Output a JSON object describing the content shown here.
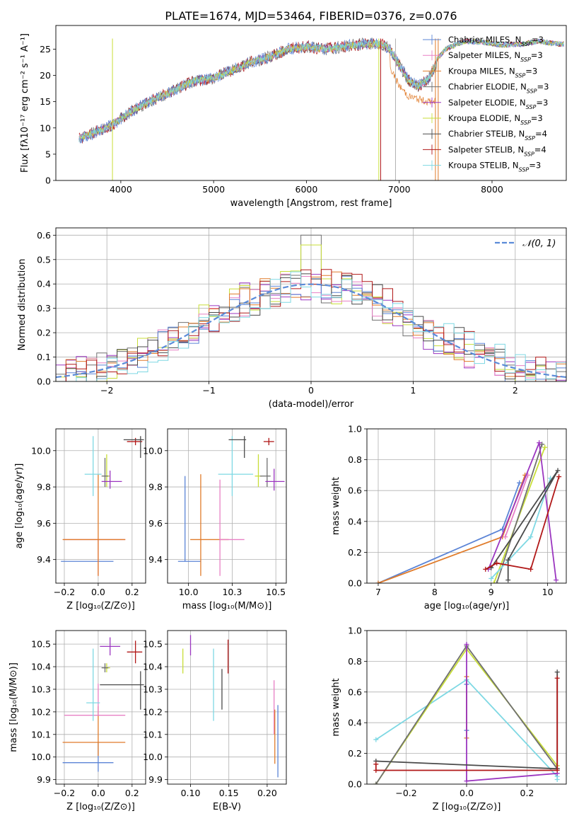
{
  "title": "PLATE=1674, MJD=53464, FIBERID=0376, z=0.076",
  "models": [
    {
      "key": "chab_miles",
      "label": "Chabrier MILES, N",
      "sub": "SSP",
      "suffix": "=3",
      "color": "#5b84d6"
    },
    {
      "key": "salp_miles",
      "label": "Salpeter MILES, N",
      "sub": "SSP",
      "suffix": "=3",
      "color": "#e880c5"
    },
    {
      "key": "krou_miles",
      "label": "Kroupa MILES, N",
      "sub": "SSP",
      "suffix": "=3",
      "color": "#e07b2a"
    },
    {
      "key": "chab_elodie",
      "label": "Chabrier ELODIE, N",
      "sub": "SSP",
      "suffix": "=3",
      "color": "#707070"
    },
    {
      "key": "salp_elodie",
      "label": "Salpeter ELODIE, N",
      "sub": "SSP",
      "suffix": "=3",
      "color": "#9b36c0"
    },
    {
      "key": "krou_elodie",
      "label": "Kroupa ELODIE, N",
      "sub": "SSP",
      "suffix": "=3",
      "color": "#c8de38"
    },
    {
      "key": "chab_stelib",
      "label": "Chabrier STELIB, N",
      "sub": "SSP",
      "suffix": "=4",
      "color": "#4a4a4a"
    },
    {
      "key": "salp_stelib",
      "label": "Salpeter STELIB, N",
      "sub": "SSP",
      "suffix": "=4",
      "color": "#b11818"
    },
    {
      "key": "krou_stelib",
      "label": "Kroupa STELIB, N",
      "sub": "SSP",
      "suffix": "=3",
      "color": "#7ed8e3"
    }
  ],
  "chart_data": [
    {
      "id": "spectrum",
      "type": "line",
      "xlabel": "wavelength [Angstrom, rest frame]",
      "ylabel": "Flux [fλ10⁻¹⁷ erg cm⁻² s⁻¹ A⁻¹]",
      "xlim": [
        3300,
        8800
      ],
      "ylim": [
        0,
        29.5
      ],
      "xticks": [
        4000,
        5000,
        6000,
        7000,
        8000
      ],
      "yticks": [
        0,
        5,
        10,
        15,
        20,
        25
      ],
      "continuum": {
        "x": [
          3550,
          3700,
          3900,
          4100,
          4300,
          4500,
          4800,
          5000,
          5200,
          5400,
          5600,
          5800,
          6000,
          6200,
          6400,
          6600,
          6800,
          6900,
          7000,
          7100,
          7200,
          7300,
          7400
        ],
        "y": [
          8,
          9,
          10.5,
          13,
          15,
          16.5,
          19,
          19.5,
          21,
          22.5,
          23.5,
          25,
          25.5,
          25,
          25.5,
          26,
          26,
          25,
          22,
          19,
          18,
          19,
          22
        ]
      },
      "series_high": {
        "x": [
          7100,
          7300,
          7500,
          7700,
          7900,
          8100,
          8300,
          8500,
          8700
        ],
        "y": [
          20,
          21,
          25,
          26.5,
          26.3,
          25.8,
          25.9,
          26.5,
          26
        ]
      },
      "series_low": {
        "name": "Kroupa MILES",
        "x": [
          6900,
          7000,
          7100,
          7200,
          7300,
          7400
        ],
        "y": [
          21.5,
          18,
          16,
          15.5,
          15,
          15
        ]
      }
    },
    {
      "id": "residuals",
      "type": "histogram",
      "xlabel": "(data-model)/error",
      "ylabel": "Normed distribution",
      "xlim": [
        -2.5,
        2.5
      ],
      "ylim": [
        0,
        0.63
      ],
      "xticks": [
        -2,
        -1,
        0,
        1,
        2
      ],
      "yticks": [
        0.0,
        0.1,
        0.2,
        0.3,
        0.4,
        0.5,
        0.6
      ],
      "legend": "𝒩(0, 1)",
      "legend_color": "#5b8bd8",
      "bin_width": 0.1,
      "bin_start": -2.5,
      "peak": {
        "x": 0.0,
        "y": 0.6
      }
    },
    {
      "id": "age_vs_Z",
      "type": "errorbar",
      "xlabel": "Z [log₁₀(Z/Z⊙)]",
      "ylabel": "age  [log₁₀(age/yr)]",
      "xlim": [
        -0.25,
        0.28
      ],
      "ylim": [
        9.27,
        10.12
      ],
      "xticks": [
        -0.2,
        0.0,
        0.2
      ],
      "yticks": [
        9.4,
        9.6,
        9.8,
        10.0
      ],
      "points": [
        {
          "model": "chab_miles",
          "x": 0.0,
          "y": 9.39,
          "xerr": [
            0.22,
            0.09
          ],
          "yerr": [
            0,
            0
          ]
        },
        {
          "model": "salp_miles",
          "x": 0.0,
          "y": 9.51,
          "xerr": [
            0.2,
            0.16
          ],
          "yerr": [
            0.2,
            0
          ]
        },
        {
          "model": "krou_miles",
          "x": 0.0,
          "y": 9.51,
          "xerr": [
            0.21,
            0.16
          ],
          "yerr": [
            0.2,
            0.36
          ]
        },
        {
          "model": "krou_stelib",
          "x": -0.03,
          "y": 9.87,
          "xerr": [
            0.05,
            0.05
          ],
          "yerr": [
            0.12,
            0.21
          ]
        },
        {
          "model": "krou_elodie",
          "x": 0.05,
          "y": 9.86,
          "xerr": [
            0.02,
            0.02
          ],
          "yerr": [
            0.06,
            0.12
          ]
        },
        {
          "model": "chab_elodie",
          "x": 0.04,
          "y": 9.86,
          "xerr": [
            0.02,
            0.02
          ],
          "yerr": [
            0.06,
            0.1
          ]
        },
        {
          "model": "salp_elodie",
          "x": 0.07,
          "y": 9.83,
          "xerr": [
            0.05,
            0.07
          ],
          "yerr": [
            0.04,
            0.06
          ]
        },
        {
          "model": "salp_stelib",
          "x": 0.22,
          "y": 10.05,
          "xerr": [
            0.05,
            0.04
          ],
          "yerr": [
            0.02,
            0.02
          ]
        },
        {
          "model": "chab_stelib",
          "x": 0.25,
          "y": 10.06,
          "xerr": [
            0.1,
            0.02
          ],
          "yerr": [
            0.1,
            0.02
          ]
        }
      ]
    },
    {
      "id": "age_vs_mass",
      "type": "errorbar",
      "xlabel": "mass [log₁₀(M/M⊙)]",
      "ylabel": "",
      "xlim": [
        9.88,
        10.56
      ],
      "ylim": [
        9.27,
        10.12
      ],
      "xticks": [
        10.0,
        10.25,
        10.5
      ],
      "yticks": [
        9.4,
        9.6,
        9.8,
        10.0
      ],
      "points": [
        {
          "model": "chab_miles",
          "x": 9.98,
          "y": 9.39,
          "xerr": [
            0.04,
            0.09
          ],
          "yerr": [
            0,
            0.47
          ]
        },
        {
          "model": "krou_miles",
          "x": 10.07,
          "y": 9.51,
          "xerr": [
            0.06,
            0.16
          ],
          "yerr": [
            0.2,
            0.36
          ]
        },
        {
          "model": "salp_miles",
          "x": 10.18,
          "y": 9.51,
          "xerr": [
            0,
            0.14
          ],
          "yerr": [
            0.2,
            0.33
          ]
        },
        {
          "model": "krou_stelib",
          "x": 10.25,
          "y": 9.87,
          "xerr": [
            0.08,
            0.12
          ],
          "yerr": [
            0.12,
            0.21
          ]
        },
        {
          "model": "chab_stelib",
          "x": 10.32,
          "y": 10.06,
          "xerr": [
            0.09,
            0.01
          ],
          "yerr": [
            0.1,
            0.02
          ]
        },
        {
          "model": "krou_elodie",
          "x": 10.4,
          "y": 9.86,
          "xerr": [
            0.02,
            0.02
          ],
          "yerr": [
            0.06,
            0.12
          ]
        },
        {
          "model": "salp_stelib",
          "x": 10.46,
          "y": 10.05,
          "xerr": [
            0.03,
            0.03
          ],
          "yerr": [
            0.02,
            0.02
          ]
        },
        {
          "model": "chab_elodie",
          "x": 10.45,
          "y": 9.86,
          "xerr": [
            0.04,
            0.02
          ],
          "yerr": [
            0.06,
            0.1
          ]
        },
        {
          "model": "salp_elodie",
          "x": 10.49,
          "y": 9.83,
          "xerr": [
            0.05,
            0.06
          ],
          "yerr": [
            0.05,
            0.07
          ]
        }
      ]
    },
    {
      "id": "weight_vs_age",
      "type": "line",
      "xlabel": "age  [log₁₀(age/yr)]",
      "ylabel": "mass weight",
      "xlim": [
        6.8,
        10.33
      ],
      "ylim": [
        0,
        1
      ],
      "xticks": [
        7,
        8,
        9,
        10
      ],
      "yticks": [
        0.0,
        0.2,
        0.4,
        0.6,
        0.8,
        1.0
      ],
      "series": [
        {
          "model": "chab_miles",
          "x": [
            7.0,
            9.2,
            9.5
          ],
          "y": [
            0.0,
            0.35,
            0.65
          ]
        },
        {
          "model": "krou_miles",
          "x": [
            7.0,
            9.2,
            9.6
          ],
          "y": [
            0.0,
            0.3,
            0.7
          ]
        },
        {
          "model": "salp_miles",
          "x": [
            9.25,
            9.65
          ],
          "y": [
            0.3,
            0.7
          ]
        },
        {
          "model": "krou_elodie",
          "x": [
            9.05,
            9.95,
            9.95
          ],
          "y": [
            0.0,
            0.88,
            0.88
          ]
        },
        {
          "model": "chab_elodie",
          "x": [
            9.1,
            9.9
          ],
          "y": [
            0.0,
            0.9
          ]
        },
        {
          "model": "salp_elodie",
          "x": [
            8.95,
            9.85,
            10.15
          ],
          "y": [
            0.09,
            0.91,
            0.02
          ]
        },
        {
          "model": "krou_stelib",
          "x": [
            9.0,
            9.7,
            10.05
          ],
          "y": [
            0.03,
            0.3,
            0.68
          ]
        },
        {
          "model": "chab_stelib",
          "x": [
            9.3,
            9.3,
            10.18,
            9.0
          ],
          "y": [
            0.02,
            0.15,
            0.73,
            0.1
          ]
        },
        {
          "model": "salp_stelib",
          "x": [
            8.9,
            9.1,
            9.7,
            10.2
          ],
          "y": [
            0.09,
            0.13,
            0.09,
            0.69
          ]
        }
      ]
    },
    {
      "id": "mass_vs_Z",
      "type": "errorbar",
      "xlabel": "Z [log₁₀(Z/Z⊙)]",
      "ylabel": "mass [log₁₀(M/M⊙)]",
      "xlim": [
        -0.25,
        0.28
      ],
      "ylim": [
        9.88,
        10.56
      ],
      "xticks": [
        -0.2,
        0.0,
        0.2
      ],
      "yticks": [
        9.9,
        10.0,
        10.1,
        10.2,
        10.3,
        10.4,
        10.5
      ],
      "points": [
        {
          "model": "chab_miles",
          "x": 0.0,
          "y": 9.975,
          "xerr": [
            0.21,
            0.09
          ],
          "yerr": [
            0.04,
            0.09
          ]
        },
        {
          "model": "krou_miles",
          "x": 0.0,
          "y": 10.065,
          "xerr": [
            0.21,
            0.16
          ],
          "yerr": [
            0.06,
            0.16
          ]
        },
        {
          "model": "salp_miles",
          "x": 0.0,
          "y": 10.185,
          "xerr": [
            0.2,
            0.16
          ],
          "yerr": [
            0,
            0.14
          ]
        },
        {
          "model": "krou_stelib",
          "x": -0.03,
          "y": 10.24,
          "xerr": [
            0.04,
            0.04
          ],
          "yerr": [
            0.08,
            0.24
          ]
        },
        {
          "model": "chab_stelib",
          "x": 0.25,
          "y": 10.32,
          "xerr": [
            0.24,
            0.02
          ],
          "yerr": [
            0.11,
            0.06
          ]
        },
        {
          "model": "krou_elodie",
          "x": 0.05,
          "y": 10.395,
          "xerr": [
            0.02,
            0.02
          ],
          "yerr": [
            0.02,
            0.02
          ]
        },
        {
          "model": "chab_elodie",
          "x": 0.04,
          "y": 10.395,
          "xerr": [
            0.02,
            0.02
          ],
          "yerr": [
            0.02,
            0.02
          ]
        },
        {
          "model": "salp_stelib",
          "x": 0.22,
          "y": 10.465,
          "xerr": [
            0.05,
            0.04
          ],
          "yerr": [
            0.05,
            0.05
          ]
        },
        {
          "model": "salp_elodie",
          "x": 0.07,
          "y": 10.49,
          "xerr": [
            0.06,
            0.06
          ],
          "yerr": [
            0.04,
            0.04
          ]
        }
      ]
    },
    {
      "id": "mass_vs_ebv",
      "type": "errorbar",
      "xlabel": "E(B-V)",
      "ylabel": "",
      "xlim": [
        0.07,
        0.225
      ],
      "ylim": [
        9.88,
        10.56
      ],
      "xticks": [
        0.1,
        0.15,
        0.2
      ],
      "yticks": [
        9.9,
        10.0,
        10.1,
        10.2,
        10.3,
        10.4,
        10.5
      ],
      "points": [
        {
          "model": "krou_elodie",
          "x": 0.09,
          "y": 10.42,
          "xerr": [
            0,
            0
          ],
          "yerr": [
            0.05,
            0.06
          ]
        },
        {
          "model": "salp_elodie",
          "x": 0.1,
          "y": 10.49,
          "xerr": [
            0,
            0
          ],
          "yerr": [
            0.04,
            0.05
          ]
        },
        {
          "model": "krou_stelib",
          "x": 0.13,
          "y": 10.32,
          "xerr": [
            0,
            0
          ],
          "yerr": [
            0.16,
            0.16
          ]
        },
        {
          "model": "chab_stelib",
          "x": 0.141,
          "y": 10.3,
          "xerr": [
            0,
            0
          ],
          "yerr": [
            0.09,
            0.09
          ]
        },
        {
          "model": "salp_stelib",
          "x": 0.149,
          "y": 10.44,
          "xerr": [
            0,
            0
          ],
          "yerr": [
            0.07,
            0.08
          ]
        },
        {
          "model": "salp_miles",
          "x": 0.209,
          "y": 10.2,
          "xerr": [
            0,
            0
          ],
          "yerr": [
            0.1,
            0.14
          ]
        },
        {
          "model": "krou_miles",
          "x": 0.21,
          "y": 10.09,
          "xerr": [
            0,
            0
          ],
          "yerr": [
            0.12,
            0.12
          ]
        },
        {
          "model": "chab_miles",
          "x": 0.214,
          "y": 10.07,
          "xerr": [
            0,
            0
          ],
          "yerr": [
            0.16,
            0.16
          ]
        }
      ]
    },
    {
      "id": "weight_vs_Z",
      "type": "line",
      "xlabel": "Z [log₁₀(Z/Z⊙)]",
      "ylabel": "mass weight",
      "xlim": [
        -0.33,
        0.33
      ],
      "ylim": [
        0,
        1
      ],
      "xticks": [
        -0.2,
        0.0,
        0.2
      ],
      "yticks": [
        0.0,
        0.2,
        0.4,
        0.6,
        0.8,
        1.0
      ],
      "series": [
        {
          "model": "krou_stelib",
          "x": [
            -0.3,
            0.0,
            0.3,
            0.3
          ],
          "y": [
            0.29,
            0.68,
            0.05,
            0.03
          ]
        },
        {
          "model": "chab_miles",
          "x": [
            0.0,
            0.0
          ],
          "y": [
            0.35,
            0.65
          ]
        },
        {
          "model": "krou_miles",
          "x": [
            0.0,
            0.0
          ],
          "y": [
            0.3,
            0.7
          ]
        },
        {
          "model": "krou_elodie",
          "x": [
            -0.3,
            0.0,
            0.3
          ],
          "y": [
            0.0,
            0.88,
            0.12
          ]
        },
        {
          "model": "chab_elodie",
          "x": [
            -0.3,
            0.0,
            0.3
          ],
          "y": [
            0.0,
            0.9,
            0.1
          ]
        },
        {
          "model": "salp_elodie",
          "x": [
            0.0,
            0.0,
            0.3
          ],
          "y": [
            0.91,
            0.02,
            0.07
          ]
        },
        {
          "model": "chab_stelib",
          "x": [
            -0.3,
            0.3,
            0.3
          ],
          "y": [
            0.15,
            0.1,
            0.73
          ]
        },
        {
          "model": "salp_stelib",
          "x": [
            -0.3,
            -0.3,
            0.3,
            0.3
          ],
          "y": [
            0.13,
            0.09,
            0.09,
            0.69
          ]
        }
      ]
    }
  ]
}
